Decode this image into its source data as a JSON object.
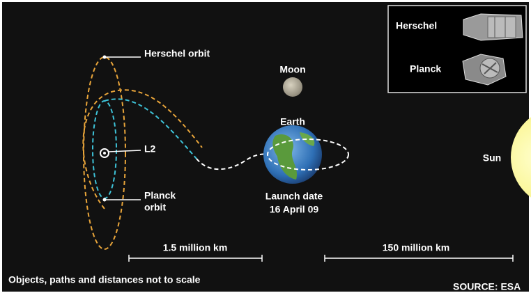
{
  "legend": {
    "items": [
      "Herschel",
      "Planck"
    ]
  },
  "labels": {
    "herschel_orbit": "Herschel orbit",
    "planck_orbit": [
      "Planck",
      "orbit"
    ],
    "l2": "L2",
    "moon": "Moon",
    "earth": "Earth",
    "launch_label": "Launch date",
    "launch_date": "16 April 09",
    "sun": "Sun"
  },
  "scales": [
    "1.5 million km",
    "150 million km"
  ],
  "footer": {
    "note": "Objects, paths and distances not to scale",
    "source": "SOURCE: ESA"
  }
}
